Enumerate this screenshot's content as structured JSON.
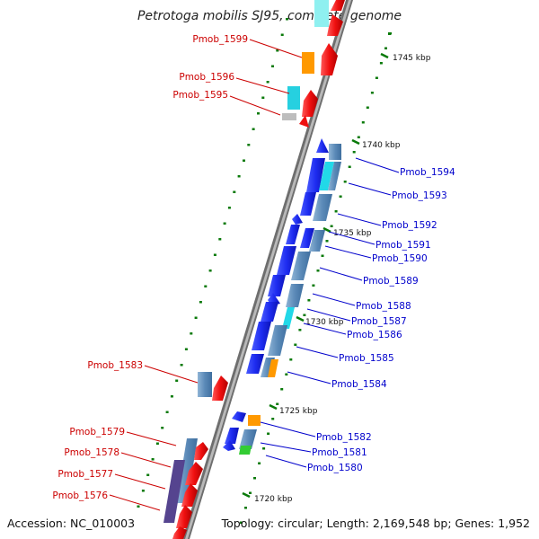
{
  "title": "Petrotoga mobilis SJ95, complete genome",
  "accession": "Accession: NC_010003",
  "summary": "Topology: circular; Length: 2,169,548 bp; Genes: 1,952",
  "scale": [
    "1745 kbp",
    "1740 kbp",
    "1735 kbp",
    "1730 kbp",
    "1725 kbp",
    "1720 kbp"
  ],
  "genes_left": [
    "Pmob_1599",
    "Pmob_1596",
    "Pmob_1595",
    "Pmob_1583",
    "Pmob_1579",
    "Pmob_1578",
    "Pmob_1577",
    "Pmob_1576"
  ],
  "genes_right": [
    "Pmob_1594",
    "Pmob_1593",
    "Pmob_1592",
    "Pmob_1591",
    "Pmob_1590",
    "Pmob_1589",
    "Pmob_1588",
    "Pmob_1587",
    "Pmob_1586",
    "Pmob_1585",
    "Pmob_1584",
    "Pmob_1582",
    "Pmob_1581",
    "Pmob_1580"
  ],
  "colors": {
    "forward_gene": "#f01010",
    "reverse_gene": "#1e2cf0",
    "feature_block": "#5b8ab8",
    "scale_tick": "#0a7a0a",
    "left_label": "#cc0000",
    "right_label": "#0000cc"
  }
}
